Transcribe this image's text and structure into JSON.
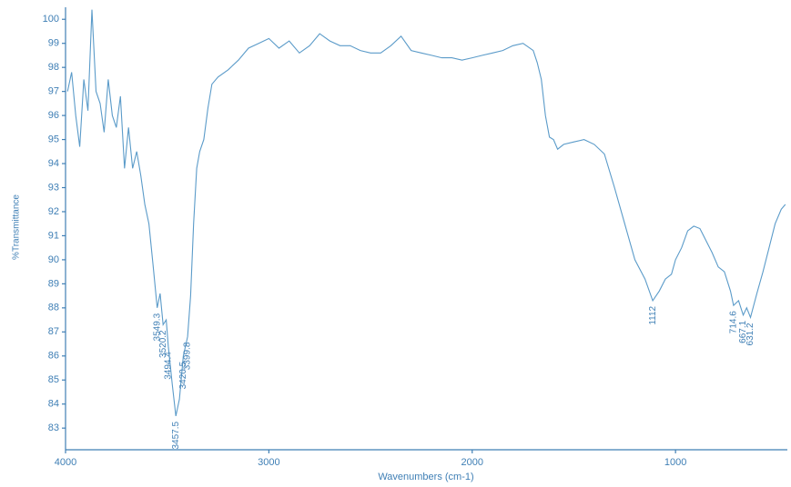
{
  "chart_data": {
    "type": "line",
    "x_label": "Wavenumbers (cm-1)",
    "y_label": "%Transmittance",
    "xlim": [
      4000,
      450
    ],
    "ylim": [
      82.1,
      100.5
    ],
    "x_reversed": true,
    "xticks": [
      4000,
      3000,
      2000,
      1000
    ],
    "yticks": [
      83,
      84,
      85,
      86,
      87,
      88,
      89,
      90,
      91,
      92,
      93,
      94,
      95,
      96,
      97,
      98,
      99,
      100
    ],
    "color": "#5b9bc9",
    "x": [
      3990,
      3970,
      3950,
      3930,
      3910,
      3890,
      3870,
      3850,
      3830,
      3810,
      3790,
      3770,
      3750,
      3730,
      3710,
      3690,
      3670,
      3650,
      3630,
      3610,
      3590,
      3570,
      3549.3,
      3535,
      3520.2,
      3505,
      3494.4,
      3475,
      3457.5,
      3440,
      3420.5,
      3399.8,
      3385,
      3370,
      3355,
      3340,
      3320,
      3300,
      3280,
      3250,
      3200,
      3150,
      3100,
      3050,
      3000,
      2950,
      2900,
      2850,
      2800,
      2750,
      2700,
      2650,
      2600,
      2550,
      2500,
      2450,
      2400,
      2350,
      2300,
      2250,
      2200,
      2150,
      2100,
      2050,
      2000,
      1950,
      1900,
      1850,
      1800,
      1750,
      1700,
      1680,
      1660,
      1640,
      1620,
      1600,
      1580,
      1550,
      1500,
      1450,
      1400,
      1350,
      1300,
      1250,
      1200,
      1150,
      1112.0,
      1080,
      1050,
      1020,
      1000,
      970,
      940,
      910,
      880,
      850,
      820,
      790,
      760,
      730,
      714.6,
      690,
      667.1,
      650,
      631.2,
      600,
      570,
      540,
      510,
      480,
      460
    ],
    "values": [
      97.0,
      97.8,
      96.0,
      94.7,
      97.5,
      96.2,
      100.4,
      97.0,
      96.5,
      95.3,
      97.5,
      96.0,
      95.5,
      96.8,
      93.8,
      95.5,
      93.8,
      94.5,
      93.5,
      92.3,
      91.5,
      89.8,
      88.0,
      88.6,
      87.3,
      87.5,
      86.4,
      84.8,
      83.5,
      84.2,
      86.0,
      86.8,
      88.5,
      91.5,
      93.8,
      94.5,
      95.0,
      96.3,
      97.3,
      97.6,
      97.9,
      98.3,
      98.8,
      99.0,
      99.2,
      98.8,
      99.1,
      98.6,
      98.9,
      99.4,
      99.1,
      98.9,
      98.9,
      98.7,
      98.6,
      98.6,
      98.9,
      99.3,
      98.7,
      98.6,
      98.5,
      98.4,
      98.4,
      98.3,
      98.4,
      98.5,
      98.6,
      98.7,
      98.9,
      99.0,
      98.7,
      98.2,
      97.5,
      96.0,
      95.1,
      95.0,
      94.6,
      94.8,
      94.9,
      95.0,
      94.8,
      94.4,
      93.0,
      91.5,
      90.0,
      89.2,
      88.3,
      88.7,
      89.2,
      89.4,
      90.0,
      90.5,
      91.2,
      91.4,
      91.3,
      90.8,
      90.3,
      89.7,
      89.5,
      88.7,
      88.1,
      88.3,
      87.7,
      88.0,
      87.6,
      88.6,
      89.5,
      90.5,
      91.5,
      92.1,
      92.3
    ],
    "annotations": [
      3549.3,
      3520.2,
      3494.4,
      3457.5,
      3420.5,
      3399.8,
      1112.0,
      714.6,
      667.1,
      631.2
    ]
  }
}
